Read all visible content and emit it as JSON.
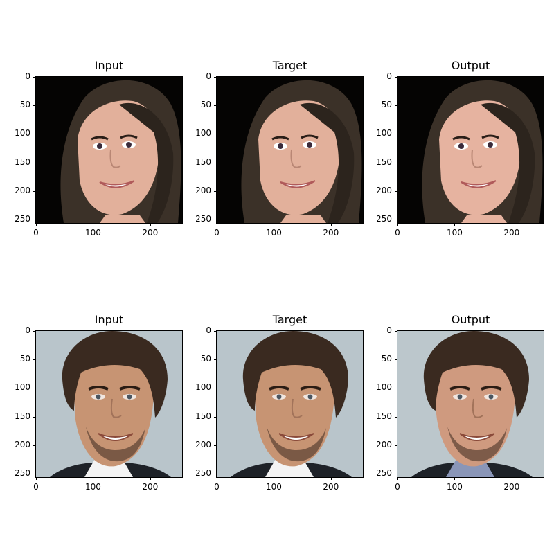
{
  "figure": {
    "rows": [
      {
        "subject": "woman",
        "panels": [
          {
            "title": "Input",
            "variant": "woman-input"
          },
          {
            "title": "Target",
            "variant": "woman-target"
          },
          {
            "title": "Output",
            "variant": "woman-output"
          }
        ]
      },
      {
        "subject": "man",
        "panels": [
          {
            "title": "Input",
            "variant": "man-input"
          },
          {
            "title": "Target",
            "variant": "man-target"
          },
          {
            "title": "Output",
            "variant": "man-output"
          }
        ]
      }
    ]
  },
  "axes": {
    "x_ticks": [
      "0",
      "100",
      "200"
    ],
    "y_ticks": [
      "0",
      "50",
      "100",
      "150",
      "200",
      "250"
    ]
  },
  "colors": {
    "woman_background": "#050403",
    "woman_hair": "#3b3128",
    "woman_skin": "#e2b09b",
    "man_background": "#b9c5cb",
    "man_hair": "#3a2a20",
    "man_skin": "#c79473",
    "man_shirt": "#f4f4f4",
    "man_jacket": "#1e2228"
  }
}
